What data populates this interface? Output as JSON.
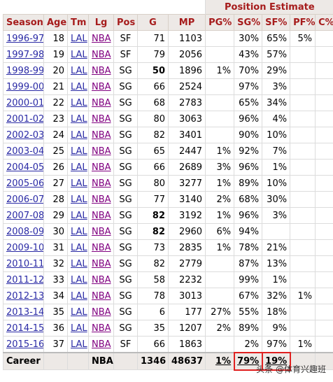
{
  "group_header": {
    "position_estimate": "Position Estimate"
  },
  "columns": [
    "Season",
    "Age",
    "Tm",
    "Lg",
    "Pos",
    "G",
    "MP",
    "PG%",
    "SG%",
    "SF%",
    "PF%",
    "C%"
  ],
  "rows": [
    [
      "1996-97",
      "18",
      "LAL",
      "NBA",
      "SF",
      "71",
      "1103",
      "",
      "30%",
      "65%",
      "5%",
      ""
    ],
    [
      "1997-98",
      "19",
      "LAL",
      "NBA",
      "SF",
      "79",
      "2056",
      "",
      "43%",
      "57%",
      "",
      ""
    ],
    [
      "1998-99",
      "20",
      "LAL",
      "NBA",
      "SG",
      "50",
      "1896",
      "1%",
      "70%",
      "29%",
      "",
      ""
    ],
    [
      "1999-00",
      "21",
      "LAL",
      "NBA",
      "SG",
      "66",
      "2524",
      "",
      "97%",
      "3%",
      "",
      ""
    ],
    [
      "2000-01",
      "22",
      "LAL",
      "NBA",
      "SG",
      "68",
      "2783",
      "",
      "65%",
      "34%",
      "",
      ""
    ],
    [
      "2001-02",
      "23",
      "LAL",
      "NBA",
      "SG",
      "80",
      "3063",
      "",
      "96%",
      "4%",
      "",
      ""
    ],
    [
      "2002-03",
      "24",
      "LAL",
      "NBA",
      "SG",
      "82",
      "3401",
      "",
      "90%",
      "10%",
      "",
      ""
    ],
    [
      "2003-04",
      "25",
      "LAL",
      "NBA",
      "SG",
      "65",
      "2447",
      "1%",
      "92%",
      "7%",
      "",
      ""
    ],
    [
      "2004-05",
      "26",
      "LAL",
      "NBA",
      "SG",
      "66",
      "2689",
      "3%",
      "96%",
      "1%",
      "",
      ""
    ],
    [
      "2005-06",
      "27",
      "LAL",
      "NBA",
      "SG",
      "80",
      "3277",
      "1%",
      "89%",
      "10%",
      "",
      ""
    ],
    [
      "2006-07",
      "28",
      "LAL",
      "NBA",
      "SG",
      "77",
      "3140",
      "2%",
      "68%",
      "30%",
      "",
      ""
    ],
    [
      "2007-08",
      "29",
      "LAL",
      "NBA",
      "SG",
      "82",
      "3192",
      "1%",
      "96%",
      "3%",
      "",
      ""
    ],
    [
      "2008-09",
      "30",
      "LAL",
      "NBA",
      "SG",
      "82",
      "2960",
      "6%",
      "94%",
      "",
      "",
      ""
    ],
    [
      "2009-10",
      "31",
      "LAL",
      "NBA",
      "SG",
      "73",
      "2835",
      "1%",
      "78%",
      "21%",
      "",
      ""
    ],
    [
      "2010-11",
      "32",
      "LAL",
      "NBA",
      "SG",
      "82",
      "2779",
      "",
      "87%",
      "13%",
      "",
      ""
    ],
    [
      "2011-12",
      "33",
      "LAL",
      "NBA",
      "SG",
      "58",
      "2232",
      "",
      "99%",
      "1%",
      "",
      ""
    ],
    [
      "2012-13",
      "34",
      "LAL",
      "NBA",
      "SG",
      "78",
      "3013",
      "",
      "67%",
      "32%",
      "1%",
      ""
    ],
    [
      "2013-14",
      "35",
      "LAL",
      "NBA",
      "SG",
      "6",
      "177",
      "27%",
      "55%",
      "18%",
      "",
      ""
    ],
    [
      "2014-15",
      "36",
      "LAL",
      "NBA",
      "SG",
      "35",
      "1207",
      "2%",
      "89%",
      "9%",
      "",
      ""
    ],
    [
      "2015-16",
      "37",
      "LAL",
      "NBA",
      "SF",
      "66",
      "1863",
      "",
      "2%",
      "97%",
      "1%",
      ""
    ]
  ],
  "bold_games_rows": [
    2,
    11,
    12
  ],
  "career": {
    "label": "Career",
    "lg": "NBA",
    "g": "1346",
    "mp": "48637",
    "pg": "1%",
    "sg": "79%",
    "sf": "19%",
    "pf": "",
    "c": ""
  },
  "highlight_color": "#e02020",
  "watermark": "头条 @体育兴趣班"
}
